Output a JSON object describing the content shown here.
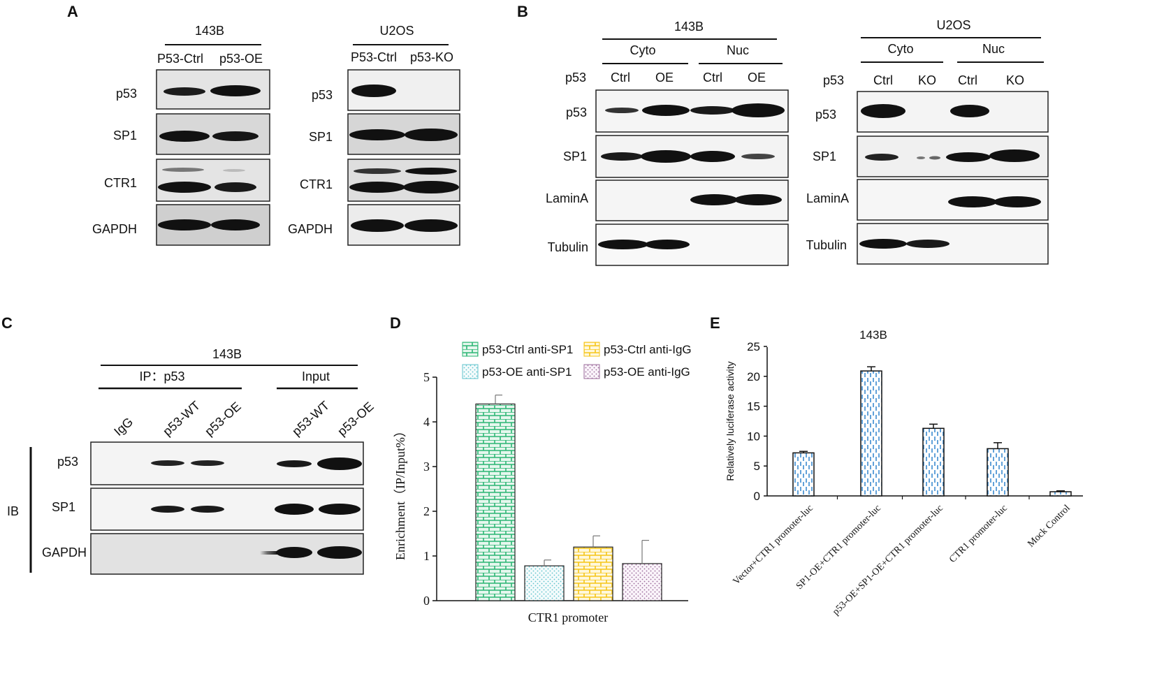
{
  "panelA": {
    "letter": "A",
    "left": {
      "cell_line": "143B",
      "lanes": [
        "P53-Ctrl",
        "p53-OE"
      ],
      "rows": [
        "p53",
        "SP1",
        "CTR1",
        "GAPDH"
      ]
    },
    "right": {
      "cell_line": "U2OS",
      "lanes": [
        "P53-Ctrl",
        "p53-KO"
      ],
      "rows": [
        "p53",
        "SP1",
        "CTR1",
        "GAPDH"
      ]
    }
  },
  "panelB": {
    "letter": "B",
    "left": {
      "cell_line": "143B",
      "fractions": [
        "Cyto",
        "Nuc"
      ],
      "row_header": "p53",
      "lanes": [
        "Ctrl",
        "OE",
        "Ctrl",
        "OE"
      ],
      "rows": [
        "p53",
        "SP1",
        "LaminA",
        "Tubulin"
      ]
    },
    "right": {
      "cell_line": "U2OS",
      "fractions": [
        "Cyto",
        "Nuc"
      ],
      "row_header": "p53",
      "lanes": [
        "Ctrl",
        "KO",
        "Ctrl",
        "KO"
      ],
      "rows": [
        "p53",
        "SP1",
        "LaminA",
        "Tubulin"
      ]
    }
  },
  "panelC": {
    "letter": "C",
    "cell_line": "143B",
    "ip_label": "IP：p53",
    "input_label": "Input",
    "lanes": [
      "IgG",
      "p53-WT",
      "p53-OE",
      "p53-WT",
      "p53-OE"
    ],
    "ib_label": "IB",
    "rows": [
      "p53",
      "SP1",
      "GAPDH"
    ]
  },
  "panelD": {
    "letter": "D",
    "chart_data": {
      "type": "bar",
      "title": "",
      "xlabel": "CTR1 promoter",
      "ylabel": "Enrichment（IP/Input%）",
      "ylim": [
        0,
        5
      ],
      "yticks": [
        "0",
        "1",
        "2",
        "3",
        "4",
        "5"
      ],
      "legend_position": "top",
      "series": [
        {
          "name": "p53-Ctrl anti-SP1",
          "value": 4.4,
          "error": 0.2,
          "color": "#2bb673",
          "pattern": "brick"
        },
        {
          "name": "p53-OE anti-SP1",
          "value": 0.78,
          "error": 0.13,
          "color": "#7fd3d8",
          "pattern": "dots"
        },
        {
          "name": "p53-Ctrl anti-IgG",
          "value": 1.2,
          "error": 0.25,
          "color": "#f5c518",
          "pattern": "brick"
        },
        {
          "name": "p53-OE anti-IgG",
          "value": 0.83,
          "error": 0.52,
          "color": "#b07ab0",
          "pattern": "dots"
        }
      ]
    }
  },
  "panelE": {
    "letter": "E",
    "chart_data": {
      "type": "bar",
      "title": "143B",
      "xlabel": "",
      "ylabel": "Relatively luciferase activity",
      "ylim": [
        0,
        25
      ],
      "yticks": [
        "0",
        "5",
        "10",
        "15",
        "20",
        "25"
      ],
      "categories": [
        "Vector+CTR1 promoter-luc",
        "SP1-OE+CTR1 promoter-luc",
        "p53-OE+SP1-OE+CTR1 promoter-luc",
        "CTR1 promoter-luc",
        "Mock Control"
      ],
      "values": [
        7.2,
        20.9,
        11.3,
        7.9,
        0.7
      ],
      "errors": [
        0.25,
        0.7,
        0.7,
        1.0,
        0.15
      ],
      "color": "#3b8bd0"
    }
  }
}
